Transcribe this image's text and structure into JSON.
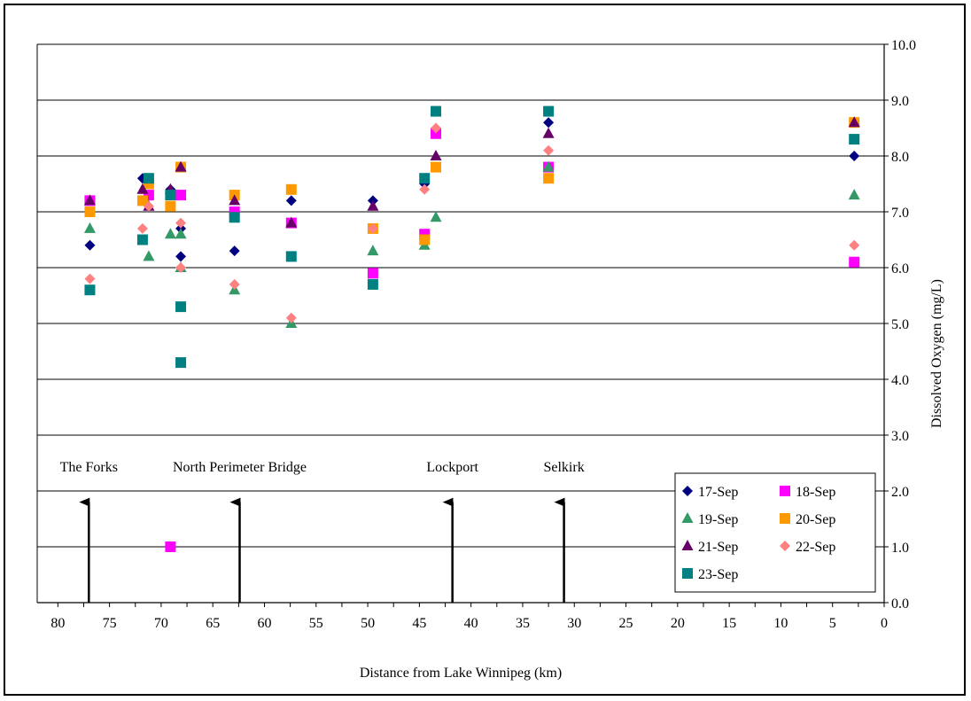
{
  "chart_data": {
    "type": "scatter",
    "title": "",
    "xlabel": "Distance from Lake Winnipeg (km)",
    "ylabel": "Dissolved Oxygen (mg/L)",
    "xlim": [
      82,
      0
    ],
    "ylim": [
      0,
      10
    ],
    "x_reversed": true,
    "y_axis_side": "right",
    "xticks": [
      "80",
      "75",
      "70",
      "65",
      "60",
      "55",
      "50",
      "45",
      "40",
      "35",
      "30",
      "25",
      "20",
      "15",
      "10",
      "5",
      "0"
    ],
    "yticks": [
      "0.0",
      "1.0",
      "2.0",
      "3.0",
      "4.0",
      "5.0",
      "6.0",
      "7.0",
      "8.0",
      "9.0",
      "10.0"
    ],
    "grid": "horizontal",
    "legend_position": "bottom-right",
    "series": [
      {
        "name": "17-Sep",
        "marker": "diamond",
        "color": "#000080",
        "points": [
          [
            76.9,
            6.4
          ],
          [
            71.8,
            7.6
          ],
          [
            69.1,
            7.4
          ],
          [
            68.1,
            6.7
          ],
          [
            68.1,
            6.2
          ],
          [
            62.9,
            6.3
          ],
          [
            57.4,
            7.2
          ],
          [
            49.5,
            7.2
          ],
          [
            44.5,
            7.5
          ],
          [
            32.5,
            8.6
          ],
          [
            2.9,
            8.0
          ]
        ]
      },
      {
        "name": "18-Sep",
        "marker": "square",
        "color": "#ff00ff",
        "points": [
          [
            76.9,
            7.2
          ],
          [
            71.2,
            7.3
          ],
          [
            68.1,
            7.3
          ],
          [
            69.1,
            1.0
          ],
          [
            62.9,
            7.0
          ],
          [
            57.4,
            6.8
          ],
          [
            49.5,
            5.9
          ],
          [
            44.5,
            6.6
          ],
          [
            43.4,
            8.4
          ],
          [
            32.5,
            7.8
          ],
          [
            2.9,
            6.1
          ]
        ]
      },
      {
        "name": "19-Sep",
        "marker": "triangle",
        "color": "#339966",
        "points": [
          [
            76.9,
            6.7
          ],
          [
            71.2,
            6.2
          ],
          [
            69.1,
            6.6
          ],
          [
            68.1,
            6.6
          ],
          [
            68.1,
            6.0
          ],
          [
            62.9,
            5.6
          ],
          [
            57.4,
            5.0
          ],
          [
            49.5,
            6.3
          ],
          [
            44.5,
            6.4
          ],
          [
            43.4,
            6.9
          ],
          [
            32.5,
            7.8
          ],
          [
            2.9,
            7.3
          ]
        ]
      },
      {
        "name": "20-Sep",
        "marker": "square",
        "color": "#ff9900",
        "points": [
          [
            76.9,
            7.0
          ],
          [
            71.8,
            7.2
          ],
          [
            71.2,
            7.5
          ],
          [
            69.1,
            7.1
          ],
          [
            68.1,
            7.8
          ],
          [
            62.9,
            7.3
          ],
          [
            57.4,
            7.4
          ],
          [
            49.5,
            6.7
          ],
          [
            44.5,
            6.5
          ],
          [
            43.4,
            7.8
          ],
          [
            32.5,
            7.6
          ],
          [
            2.9,
            8.6
          ]
        ]
      },
      {
        "name": "21-Sep",
        "marker": "triangle",
        "color": "#660066",
        "points": [
          [
            76.9,
            7.2
          ],
          [
            71.8,
            7.4
          ],
          [
            71.2,
            7.1
          ],
          [
            69.1,
            7.4
          ],
          [
            68.1,
            7.8
          ],
          [
            62.9,
            7.2
          ],
          [
            57.4,
            6.8
          ],
          [
            49.5,
            7.1
          ],
          [
            43.4,
            8.0
          ],
          [
            32.5,
            8.4
          ],
          [
            2.9,
            8.6
          ]
        ]
      },
      {
        "name": "22-Sep",
        "marker": "diamond",
        "color": "#ff8080",
        "points": [
          [
            76.9,
            5.8
          ],
          [
            71.8,
            6.7
          ],
          [
            71.2,
            7.1
          ],
          [
            68.1,
            6.8
          ],
          [
            68.1,
            6.0
          ],
          [
            62.9,
            5.7
          ],
          [
            57.4,
            5.1
          ],
          [
            49.5,
            6.7
          ],
          [
            44.5,
            7.4
          ],
          [
            43.4,
            8.5
          ],
          [
            32.5,
            8.1
          ],
          [
            2.9,
            6.4
          ]
        ]
      },
      {
        "name": "23-Sep",
        "marker": "square",
        "color": "#008080",
        "points": [
          [
            76.9,
            5.6
          ],
          [
            71.8,
            6.5
          ],
          [
            71.2,
            7.6
          ],
          [
            69.1,
            7.3
          ],
          [
            68.1,
            5.3
          ],
          [
            68.1,
            4.3
          ],
          [
            62.9,
            6.9
          ],
          [
            57.4,
            6.2
          ],
          [
            49.5,
            5.7
          ],
          [
            44.5,
            7.6
          ],
          [
            43.4,
            8.8
          ],
          [
            32.5,
            8.8
          ],
          [
            2.9,
            8.3
          ]
        ]
      }
    ],
    "annotations": [
      {
        "text": "The Forks",
        "x": 77.0
      },
      {
        "text": "North Perimeter Bridge",
        "x": 62.4
      },
      {
        "text": "Lockport",
        "x": 41.8
      },
      {
        "text": "Selkirk",
        "x": 31.0
      }
    ]
  }
}
